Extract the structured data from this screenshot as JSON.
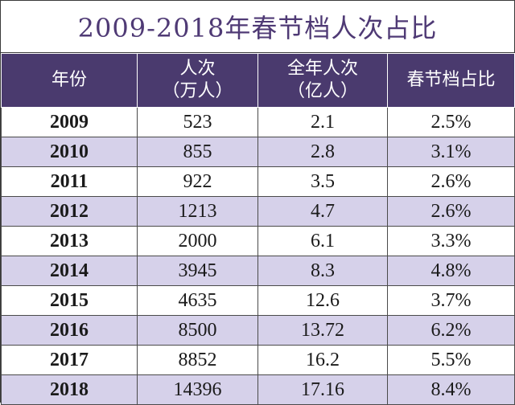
{
  "chart_data": {
    "type": "table",
    "title": "2009-2018年春节档人次占比",
    "columns": [
      {
        "line1": "年份",
        "line2": ""
      },
      {
        "line1": "人次",
        "line2": "（万人）"
      },
      {
        "line1": "全年人次",
        "line2": "（亿人）"
      },
      {
        "line1": "春节档占比",
        "line2": ""
      }
    ],
    "rows": [
      [
        "2009",
        "523",
        "2.1",
        "2.5%"
      ],
      [
        "2010",
        "855",
        "2.8",
        "3.1%"
      ],
      [
        "2011",
        "922",
        "3.5",
        "2.6%"
      ],
      [
        "2012",
        "1213",
        "4.7",
        "2.6%"
      ],
      [
        "2013",
        "2000",
        "6.1",
        "3.3%"
      ],
      [
        "2014",
        "3945",
        "8.3",
        "4.8%"
      ],
      [
        "2015",
        "4635",
        "12.6",
        "3.7%"
      ],
      [
        "2016",
        "8500",
        "13.72",
        "6.2%"
      ],
      [
        "2017",
        "8852",
        "16.2",
        "5.5%"
      ],
      [
        "2018",
        "14396",
        "17.16",
        "8.4%"
      ]
    ]
  }
}
